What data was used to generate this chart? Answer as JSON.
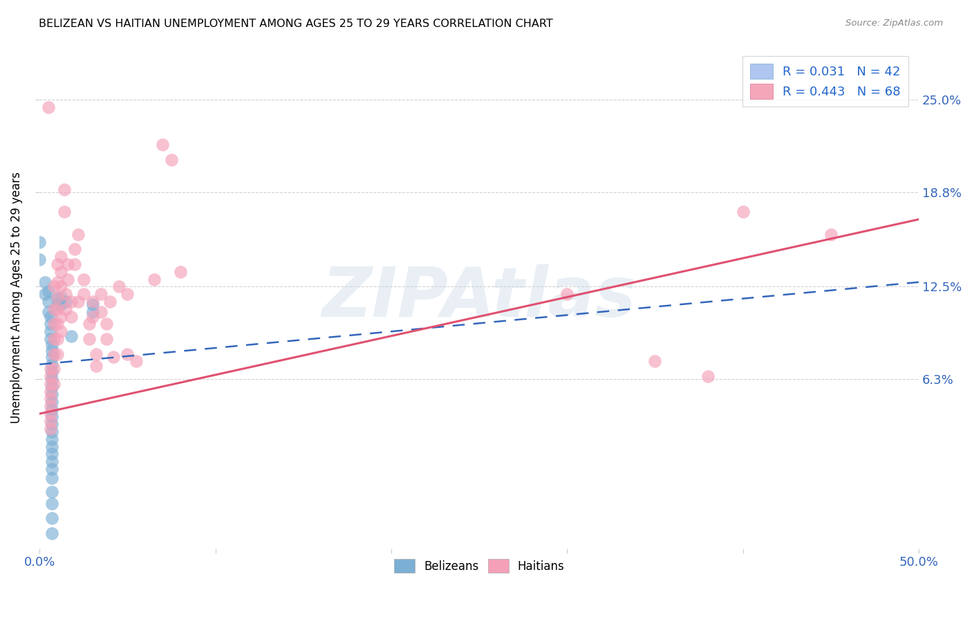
{
  "title": "BELIZEAN VS HAITIAN UNEMPLOYMENT AMONG AGES 25 TO 29 YEARS CORRELATION CHART",
  "source": "Source: ZipAtlas.com",
  "ylabel": "Unemployment Among Ages 25 to 29 years",
  "ytick_labels": [
    "25.0%",
    "18.8%",
    "12.5%",
    "6.3%"
  ],
  "ytick_values": [
    0.25,
    0.188,
    0.125,
    0.063
  ],
  "xlim": [
    0.0,
    0.5
  ],
  "ylim": [
    -0.05,
    0.285
  ],
  "legend_entries": [
    {
      "label": "R = 0.031   N = 42",
      "facecolor": "#aec6f0",
      "edgecolor": "#7bafd4"
    },
    {
      "label": "R = 0.443   N = 68",
      "facecolor": "#f4a7b9",
      "edgecolor": "#e07090"
    }
  ],
  "bottom_legend": [
    "Belizeans",
    "Haitians"
  ],
  "belizean_color": "#7bafd4",
  "haitian_color": "#f4a0b8",
  "belizean_line_color": "#3366bb",
  "haitian_line_color": "#e05070",
  "watermark": "ZIPAtlas",
  "belizean_scatter": [
    [
      0.0,
      0.155
    ],
    [
      0.0,
      0.143
    ],
    [
      0.003,
      0.128
    ],
    [
      0.003,
      0.12
    ],
    [
      0.005,
      0.122
    ],
    [
      0.005,
      0.115
    ],
    [
      0.005,
      0.108
    ],
    [
      0.006,
      0.105
    ],
    [
      0.006,
      0.1
    ],
    [
      0.006,
      0.095
    ],
    [
      0.006,
      0.09
    ],
    [
      0.007,
      0.086
    ],
    [
      0.007,
      0.082
    ],
    [
      0.007,
      0.078
    ],
    [
      0.007,
      0.073
    ],
    [
      0.007,
      0.068
    ],
    [
      0.007,
      0.063
    ],
    [
      0.007,
      0.058
    ],
    [
      0.007,
      0.053
    ],
    [
      0.007,
      0.048
    ],
    [
      0.007,
      0.043
    ],
    [
      0.007,
      0.038
    ],
    [
      0.007,
      0.033
    ],
    [
      0.007,
      0.028
    ],
    [
      0.007,
      0.023
    ],
    [
      0.007,
      0.018
    ],
    [
      0.007,
      0.013
    ],
    [
      0.007,
      0.008
    ],
    [
      0.007,
      0.003
    ],
    [
      0.007,
      -0.003
    ],
    [
      0.01,
      0.117
    ],
    [
      0.01,
      0.112
    ],
    [
      0.012,
      0.118
    ],
    [
      0.012,
      0.113
    ],
    [
      0.015,
      0.115
    ],
    [
      0.018,
      0.092
    ],
    [
      0.03,
      0.113
    ],
    [
      0.03,
      0.108
    ],
    [
      0.007,
      -0.012
    ],
    [
      0.007,
      -0.02
    ],
    [
      0.007,
      -0.03
    ],
    [
      0.007,
      -0.04
    ]
  ],
  "haitian_scatter": [
    [
      0.005,
      0.245
    ],
    [
      0.006,
      0.07
    ],
    [
      0.006,
      0.065
    ],
    [
      0.006,
      0.06
    ],
    [
      0.006,
      0.055
    ],
    [
      0.006,
      0.05
    ],
    [
      0.006,
      0.045
    ],
    [
      0.006,
      0.04
    ],
    [
      0.006,
      0.035
    ],
    [
      0.006,
      0.03
    ],
    [
      0.008,
      0.125
    ],
    [
      0.008,
      0.11
    ],
    [
      0.008,
      0.1
    ],
    [
      0.008,
      0.09
    ],
    [
      0.008,
      0.08
    ],
    [
      0.008,
      0.07
    ],
    [
      0.008,
      0.06
    ],
    [
      0.01,
      0.14
    ],
    [
      0.01,
      0.128
    ],
    [
      0.01,
      0.118
    ],
    [
      0.01,
      0.11
    ],
    [
      0.01,
      0.1
    ],
    [
      0.01,
      0.09
    ],
    [
      0.01,
      0.08
    ],
    [
      0.012,
      0.145
    ],
    [
      0.012,
      0.135
    ],
    [
      0.012,
      0.125
    ],
    [
      0.012,
      0.105
    ],
    [
      0.012,
      0.095
    ],
    [
      0.014,
      0.19
    ],
    [
      0.014,
      0.175
    ],
    [
      0.015,
      0.12
    ],
    [
      0.015,
      0.11
    ],
    [
      0.016,
      0.14
    ],
    [
      0.016,
      0.13
    ],
    [
      0.018,
      0.115
    ],
    [
      0.018,
      0.105
    ],
    [
      0.02,
      0.15
    ],
    [
      0.02,
      0.14
    ],
    [
      0.022,
      0.16
    ],
    [
      0.022,
      0.115
    ],
    [
      0.025,
      0.13
    ],
    [
      0.025,
      0.12
    ],
    [
      0.028,
      0.1
    ],
    [
      0.028,
      0.09
    ],
    [
      0.03,
      0.115
    ],
    [
      0.03,
      0.105
    ],
    [
      0.032,
      0.08
    ],
    [
      0.032,
      0.072
    ],
    [
      0.035,
      0.12
    ],
    [
      0.035,
      0.108
    ],
    [
      0.038,
      0.1
    ],
    [
      0.038,
      0.09
    ],
    [
      0.04,
      0.115
    ],
    [
      0.042,
      0.078
    ],
    [
      0.045,
      0.125
    ],
    [
      0.05,
      0.12
    ],
    [
      0.05,
      0.08
    ],
    [
      0.055,
      0.075
    ],
    [
      0.065,
      0.13
    ],
    [
      0.07,
      0.22
    ],
    [
      0.075,
      0.21
    ],
    [
      0.08,
      0.135
    ],
    [
      0.3,
      0.12
    ],
    [
      0.35,
      0.075
    ],
    [
      0.38,
      0.065
    ],
    [
      0.4,
      0.175
    ],
    [
      0.45,
      0.16
    ]
  ],
  "belizean_trendline_x": [
    0.0,
    0.5
  ],
  "belizean_trendline_y": [
    0.073,
    0.128
  ],
  "haitian_trendline_x": [
    0.0,
    0.5
  ],
  "haitian_trendline_y": [
    0.04,
    0.17
  ]
}
